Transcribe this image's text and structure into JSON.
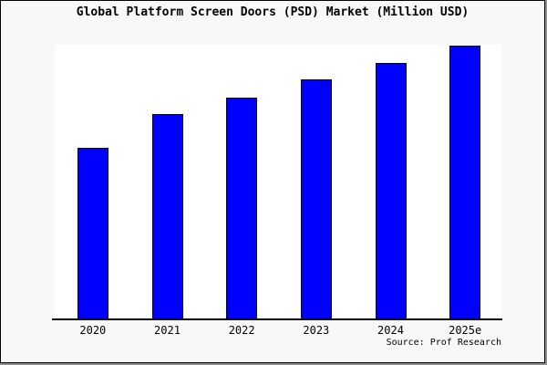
{
  "title": "Global Platform Screen Doors (PSD) Market (Million USD)",
  "source_credit": "Source: Prof Research",
  "frame": {
    "background": "#f8f8f8",
    "plot_background": "#ffffff",
    "border_color": "#000000",
    "shadow_color": "#8f8f8f"
  },
  "chart_data": {
    "type": "bar",
    "title": "Global Platform Screen Doors (PSD) Market (Million USD)",
    "categories": [
      "2020",
      "2021",
      "2022",
      "2023",
      "2024",
      "2025e"
    ],
    "values": [
      62.7,
      75.0,
      81.0,
      87.5,
      93.7,
      100.0
    ],
    "value_basis": "relative bar height, tallest bar (2025e) = 100; no y-axis scale shown in chart",
    "xlabel": "",
    "ylabel": "",
    "ylim": [
      0,
      100
    ],
    "y_axis_visible": false,
    "grid": false,
    "legend": false,
    "bar_color": "#0000ff",
    "bar_edge_color": "#000000",
    "annotations": [
      "Source: Prof Research"
    ]
  }
}
